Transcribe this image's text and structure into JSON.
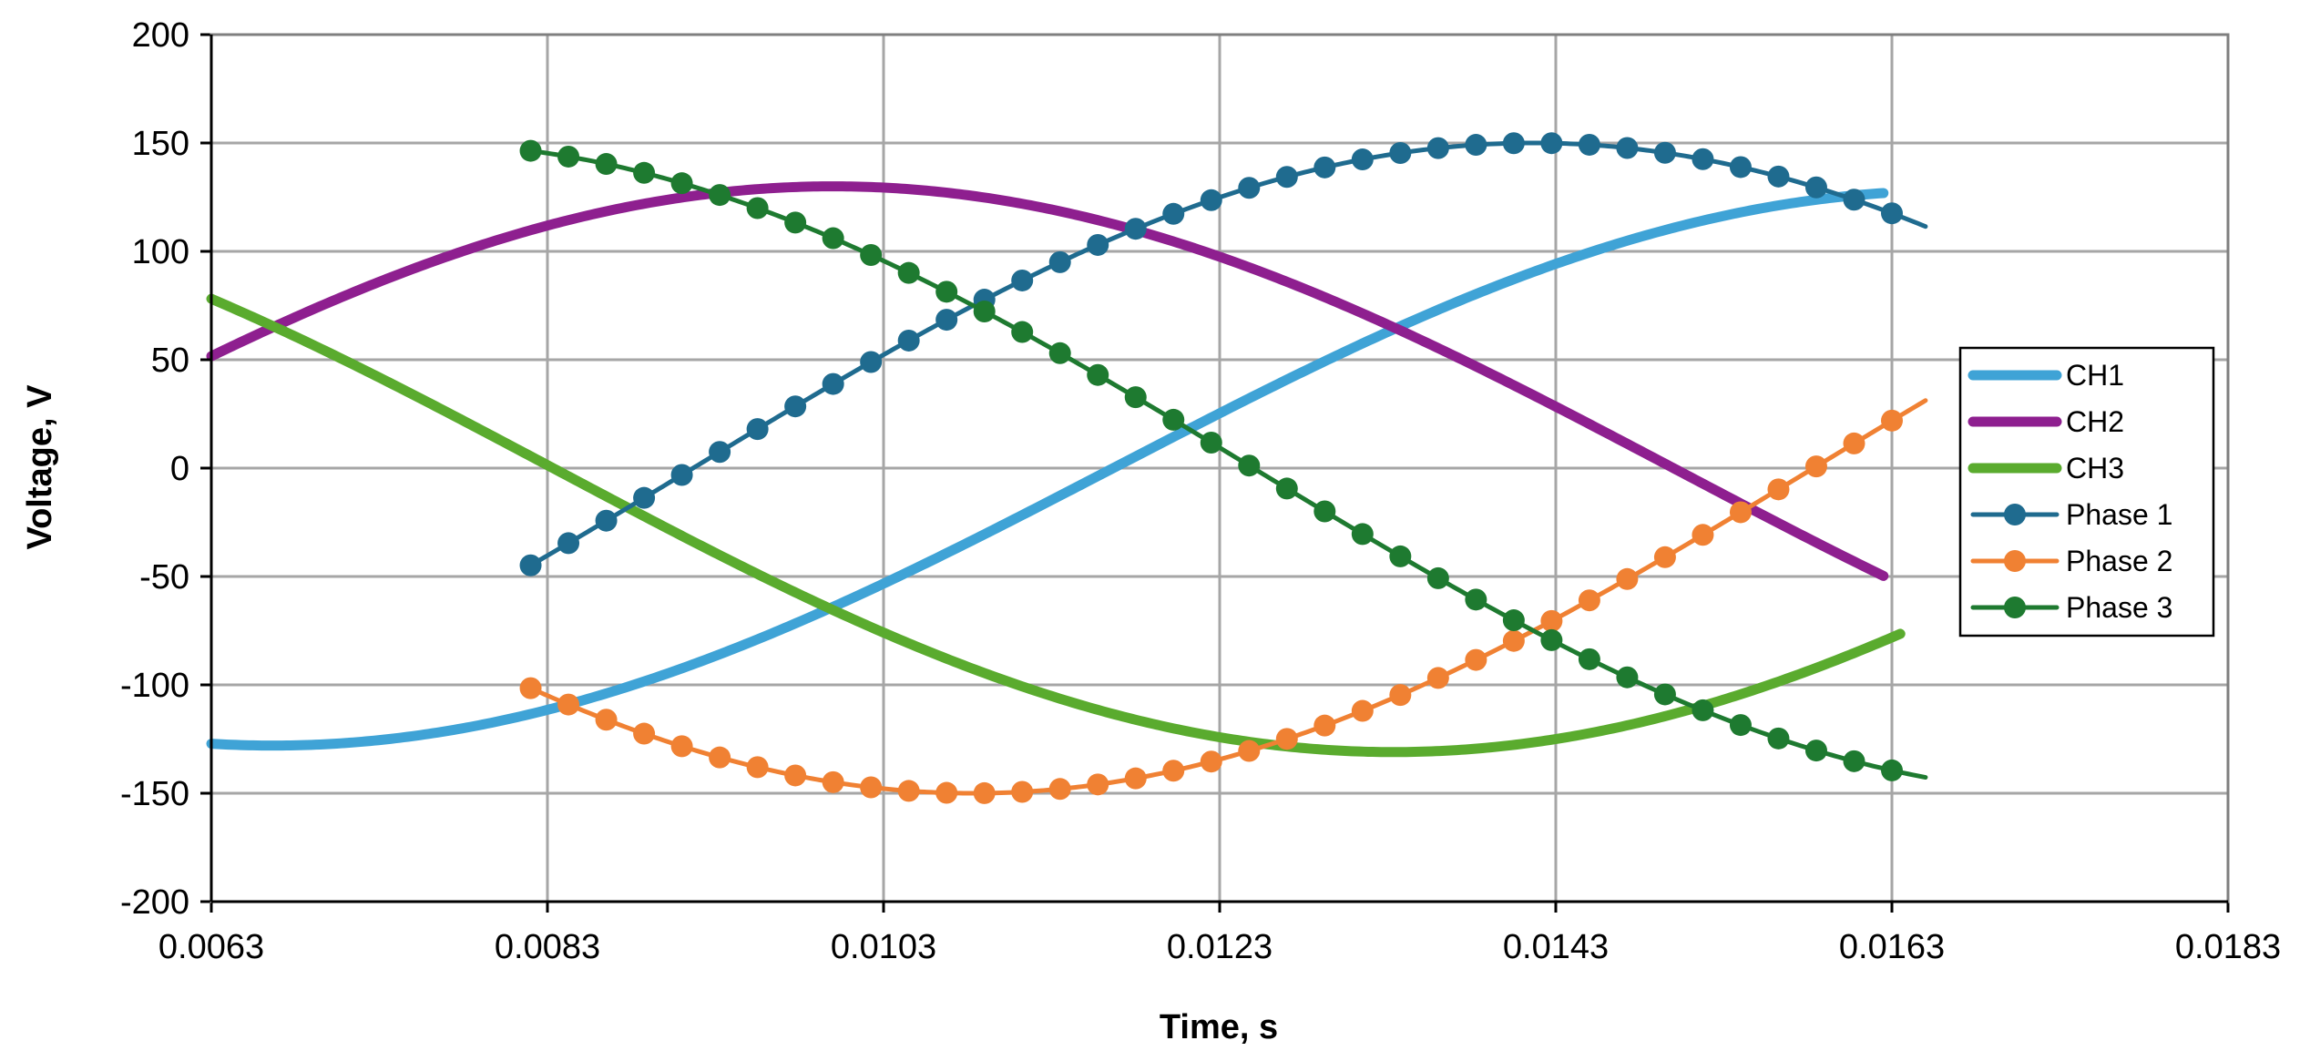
{
  "chart_data": {
    "type": "line",
    "title": "",
    "xlabel": "Time, s",
    "ylabel": "Voltage, V",
    "xlim": [
      0.0063,
      0.0183
    ],
    "ylim": [
      -200,
      200
    ],
    "x_ticks": [
      "0.0063",
      "0.0083",
      "0.0103",
      "0.0123",
      "0.0143",
      "0.0163",
      "0.0183"
    ],
    "y_ticks": [
      "200",
      "150",
      "100",
      "50",
      "0",
      "-50",
      "-100",
      "-150",
      "-200"
    ],
    "grid": true,
    "legend_position": "right",
    "series": [
      {
        "name": "CH1",
        "color": "#3fa3d6",
        "style": "line",
        "amplitude": 128,
        "phase_deg": 150,
        "x_start": 0.0063,
        "x_end": 0.01625
      },
      {
        "name": "CH2",
        "color": "#8e1f8f",
        "style": "line",
        "amplitude": 130,
        "phase_deg": 270,
        "x_start": 0.0063,
        "x_end": 0.01625
      },
      {
        "name": "CH3",
        "color": "#5aab2e",
        "style": "line",
        "amplitude": 131,
        "phase_deg": 30,
        "x_start": 0.0063,
        "x_end": 0.01635
      },
      {
        "name": "Phase 1",
        "color": "#1f6b8f",
        "style": "line-markers",
        "amplitude": 150,
        "phase_deg": 195,
        "x_start": 0.0082,
        "x_end": 0.0165
      },
      {
        "name": "Phase 2",
        "color": "#f08133",
        "style": "line-markers",
        "amplitude": 150,
        "phase_deg": 75,
        "x_start": 0.0082,
        "x_end": 0.0165
      },
      {
        "name": "Phase 3",
        "color": "#1e7a30",
        "style": "line-markers",
        "amplitude": 150,
        "phase_deg": 315,
        "x_start": 0.0082,
        "x_end": 0.0165
      }
    ],
    "frequency_hz": 50,
    "marker_spacing_s": 0.000225
  }
}
